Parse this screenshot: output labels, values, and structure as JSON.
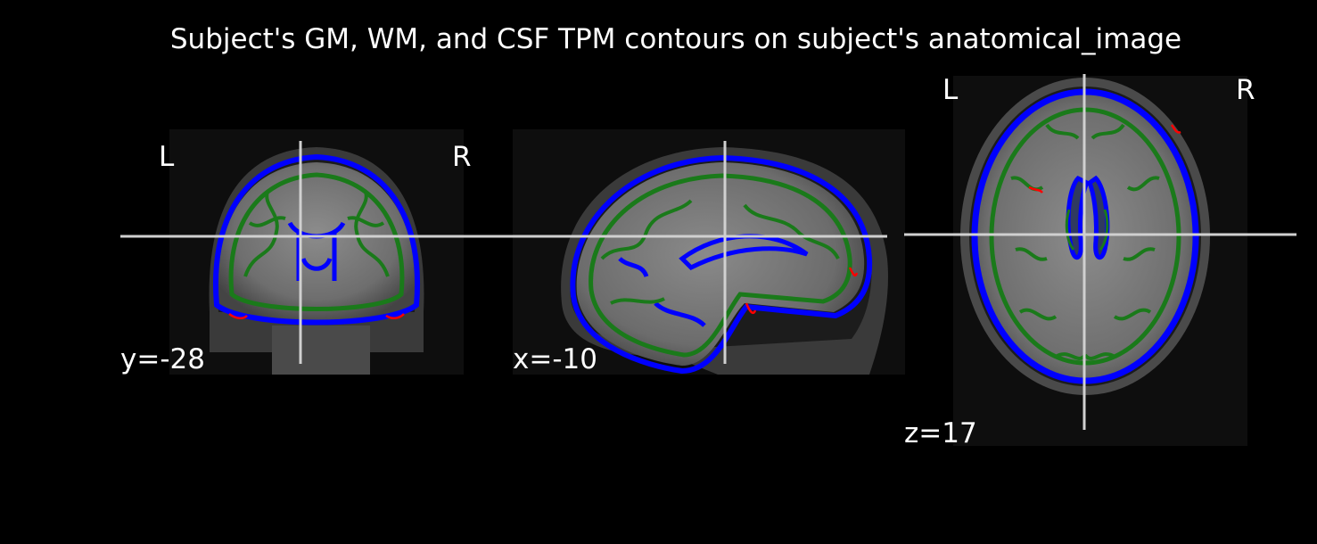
{
  "figure": {
    "title": "Subject's GM, WM, and CSF TPM contours on subject's anatomical_image",
    "background": "#000000",
    "crosshair_color": "#d0d0d0",
    "contour_colors": {
      "csf": "#0000ff",
      "wm": "#008000",
      "gm": "#ff0000"
    }
  },
  "views": {
    "coronal": {
      "left_label": "L",
      "right_label": "R",
      "coord_label": "y=-28"
    },
    "sagittal": {
      "coord_label": "x=-10"
    },
    "axial": {
      "left_label": "L",
      "right_label": "R",
      "coord_label": "z=17"
    }
  }
}
